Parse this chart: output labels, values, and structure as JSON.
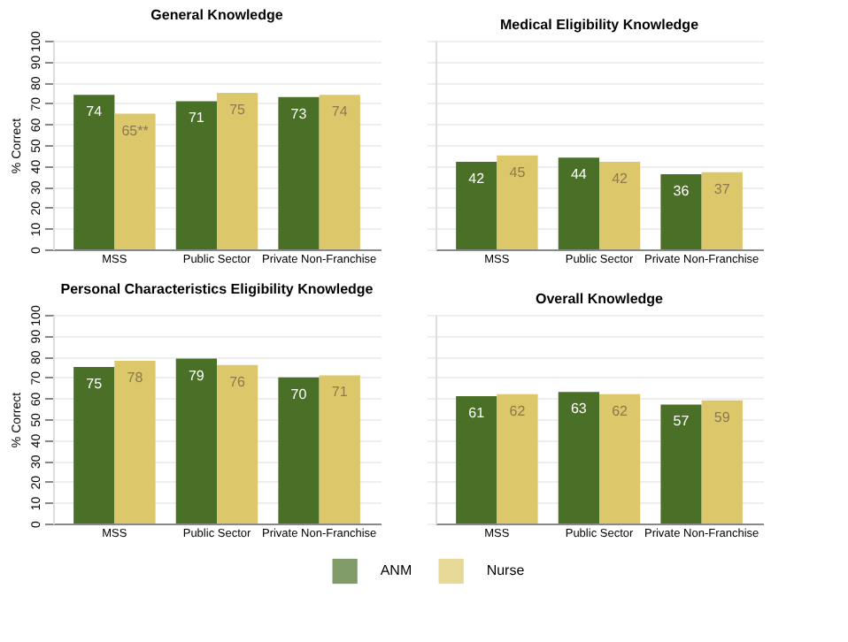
{
  "chart_data": [
    {
      "type": "bar",
      "title": "General Knowledge",
      "ylabel": "% Correct",
      "categories": [
        "MSS",
        "Public Sector",
        "Private Non-Franchise"
      ],
      "ylim": [
        0,
        100
      ],
      "yticks": [
        0,
        10,
        20,
        30,
        40,
        50,
        60,
        70,
        80,
        90,
        100
      ],
      "grid": "y",
      "data_labels": true,
      "legend": "bottom",
      "series": [
        {
          "name": "ANM",
          "color": "#4a7028",
          "values": [
            74,
            71,
            73
          ]
        },
        {
          "name": "Nurse",
          "color": "#dcc76a",
          "values": [
            65,
            75,
            74
          ],
          "value_labels": [
            "65**",
            "75",
            "74"
          ]
        }
      ]
    },
    {
      "type": "bar",
      "title": "Medical Eligibility Knowledge",
      "categories": [
        "MSS",
        "Public Sector",
        "Private Non-Franchise"
      ],
      "ylim": [
        0,
        100
      ],
      "yticks": [
        0,
        10,
        20,
        30,
        40,
        50,
        60,
        70,
        80,
        90,
        100
      ],
      "grid": "y",
      "tick_labels": "x",
      "data_labels": true,
      "series": [
        {
          "color": "#4a7028",
          "values": [
            42,
            44,
            36
          ]
        },
        {
          "color": "#dcc76a",
          "values": [
            45,
            42,
            37
          ]
        }
      ]
    },
    {
      "type": "bar",
      "title": "Personal Characteristics Eligibility Knowledge",
      "ylabel": "% Correct",
      "categories": [
        "MSS",
        "Public Sector",
        "Private Non-Franchise"
      ],
      "ylim": [
        0,
        100
      ],
      "yticks": [
        0,
        10,
        20,
        30,
        40,
        50,
        60,
        70,
        80,
        90,
        100
      ],
      "grid": "y",
      "data_labels": true,
      "series": [
        {
          "color": "#4a7028",
          "values": [
            75,
            79,
            70
          ]
        },
        {
          "color": "#dcc76a",
          "values": [
            78,
            76,
            71
          ]
        }
      ]
    },
    {
      "type": "bar",
      "title": "Overall Knowledge",
      "categories": [
        "MSS",
        "Public Sector",
        "Private Non-Franchise"
      ],
      "ylim": [
        0,
        100
      ],
      "yticks": [
        0,
        10,
        20,
        30,
        40,
        50,
        60,
        70,
        80,
        90,
        100
      ],
      "grid": "y",
      "tick_labels": "x",
      "data_labels": true,
      "series": [
        {
          "color": "#4a7028",
          "values": [
            61,
            63,
            57
          ]
        },
        {
          "color": "#dcc76a",
          "values": [
            62,
            62,
            59
          ]
        }
      ]
    }
  ]
}
